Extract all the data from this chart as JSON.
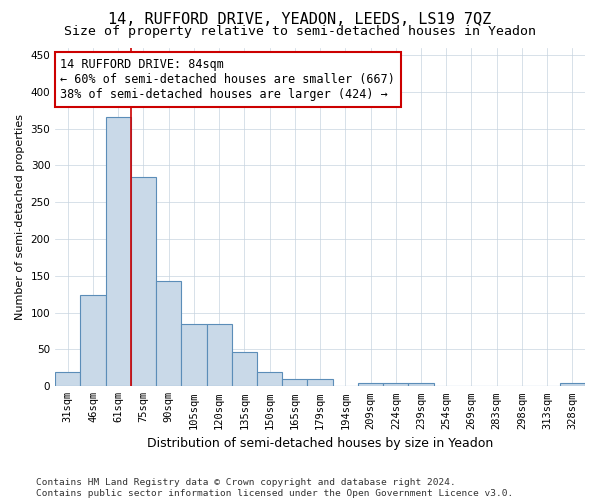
{
  "title": "14, RUFFORD DRIVE, YEADON, LEEDS, LS19 7QZ",
  "subtitle": "Size of property relative to semi-detached houses in Yeadon",
  "xlabel": "Distribution of semi-detached houses by size in Yeadon",
  "ylabel": "Number of semi-detached properties",
  "footnote": "Contains HM Land Registry data © Crown copyright and database right 2024.\nContains public sector information licensed under the Open Government Licence v3.0.",
  "categories": [
    "31sqm",
    "46sqm",
    "61sqm",
    "75sqm",
    "90sqm",
    "105sqm",
    "120sqm",
    "135sqm",
    "150sqm",
    "165sqm",
    "179sqm",
    "194sqm",
    "209sqm",
    "224sqm",
    "239sqm",
    "254sqm",
    "269sqm",
    "283sqm",
    "298sqm",
    "313sqm",
    "328sqm"
  ],
  "values": [
    19,
    124,
    365,
    284,
    143,
    85,
    85,
    47,
    20,
    10,
    10,
    0,
    4,
    5,
    4,
    0,
    0,
    0,
    0,
    0,
    4
  ],
  "bar_color": "#c9d9e8",
  "bar_edge_color": "#5b8db8",
  "bar_linewidth": 0.8,
  "red_line_x": 2.5,
  "red_line_color": "#cc0000",
  "property_label": "14 RUFFORD DRIVE: 84sqm",
  "annotation_line1": "← 60% of semi-detached houses are smaller (667)",
  "annotation_line2": "38% of semi-detached houses are larger (424) →",
  "annotation_box_color": "#ffffff",
  "annotation_box_edge_color": "#cc0000",
  "ylim": [
    0,
    460
  ],
  "yticks": [
    0,
    50,
    100,
    150,
    200,
    250,
    300,
    350,
    400,
    450
  ],
  "title_fontsize": 11,
  "subtitle_fontsize": 9.5,
  "annotation_fontsize": 8.5,
  "ylabel_fontsize": 8,
  "xlabel_fontsize": 9,
  "tick_fontsize": 7.5,
  "footnote_fontsize": 6.8,
  "background_color": "#ffffff",
  "grid_color": "#c8d4e0"
}
